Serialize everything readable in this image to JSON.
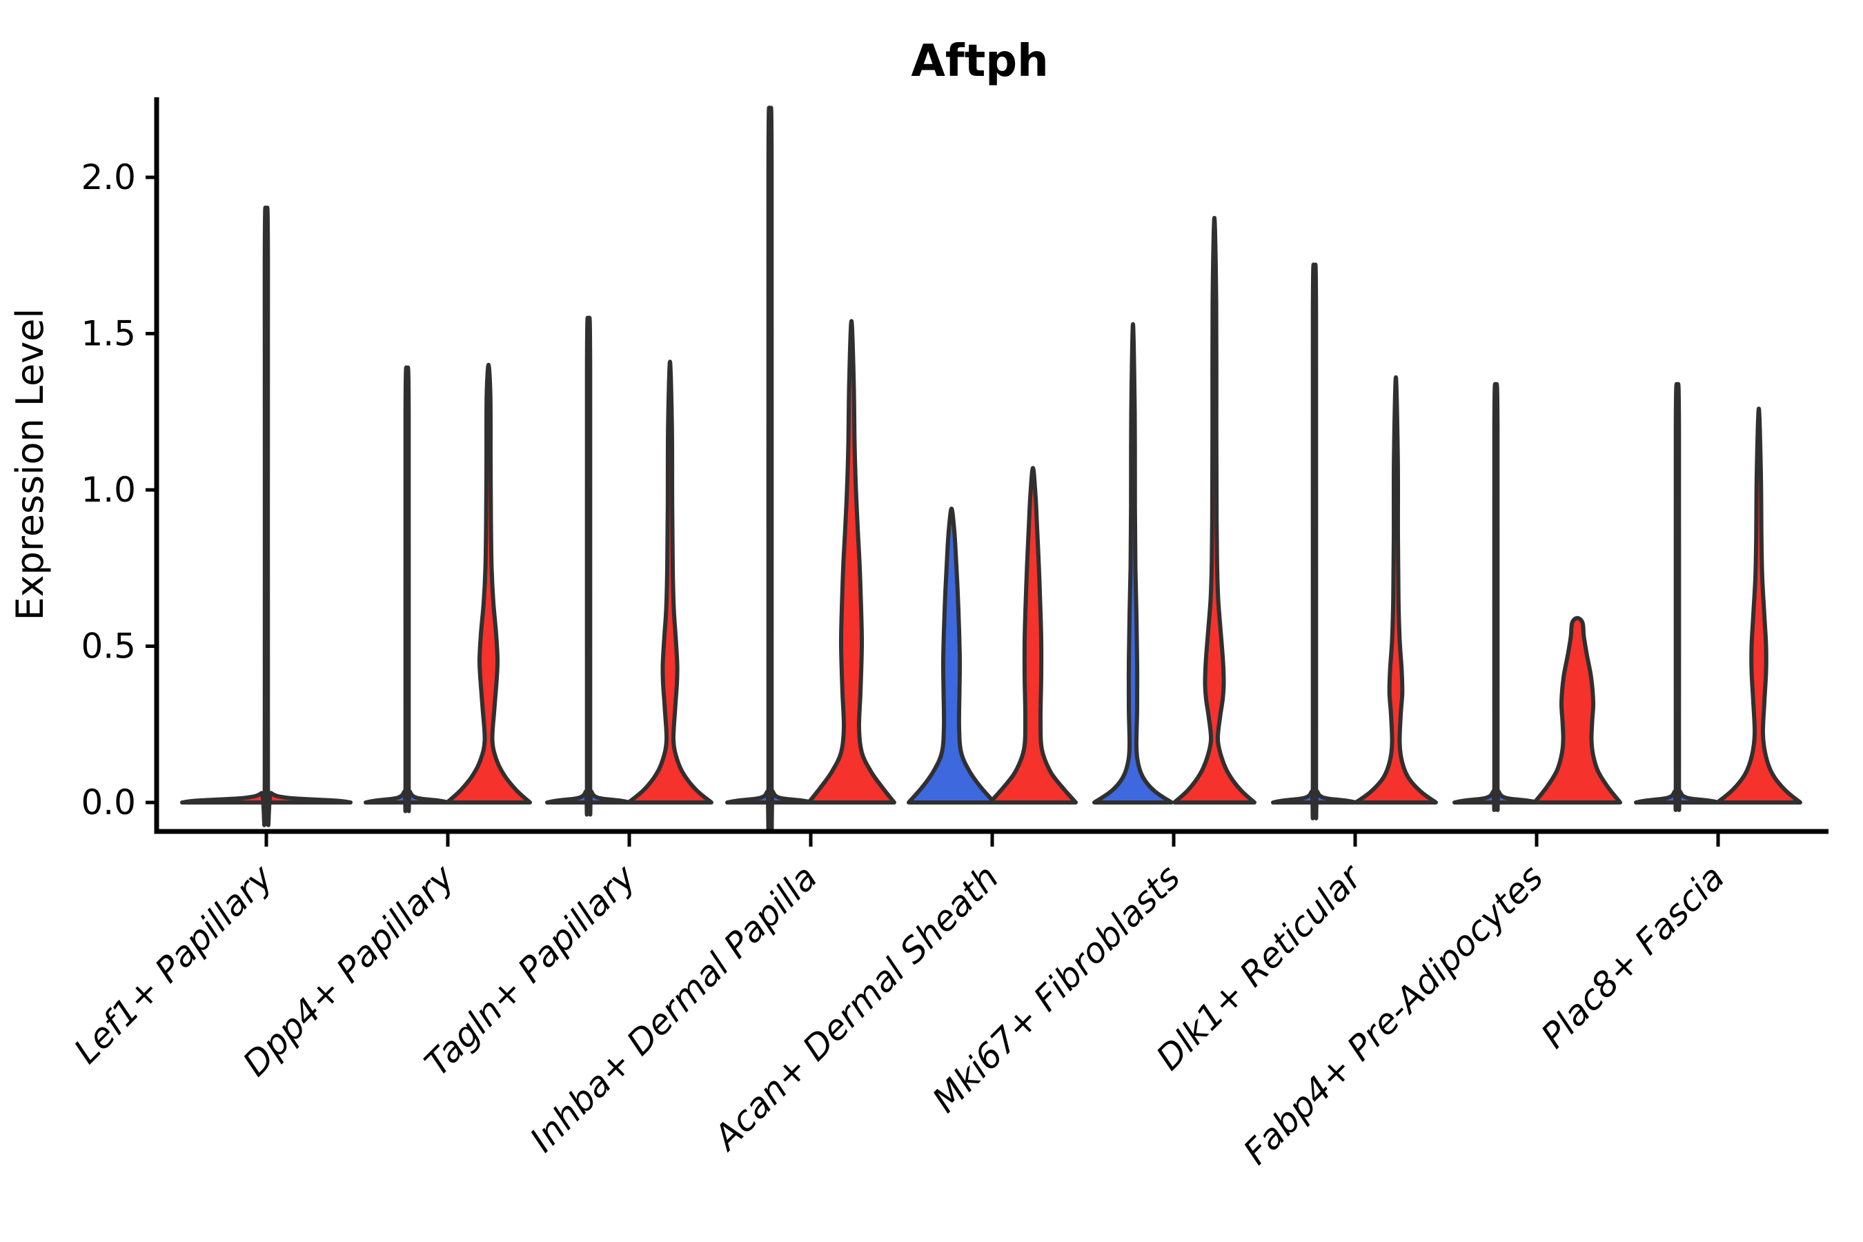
{
  "chart_data": {
    "type": "violin",
    "title": "Aftph",
    "xlabel": "",
    "ylabel": "Expression Level",
    "legend": "none",
    "grid": false,
    "ylim": [
      0,
      2.25
    ],
    "ytick_values": [
      0.0,
      0.5,
      1.0,
      1.5,
      2.0
    ],
    "ytick_labels": [
      "0.0",
      "0.5",
      "1.0",
      "1.5",
      "2.0"
    ],
    "categories": [
      "Lef1+ Papillary",
      "Dpp4+ Papillary",
      "Tagln+ Papillary",
      "Inhba+ Dermal Papilla",
      "Acan+ Dermal Sheath",
      "Mki67+ Fibroblasts",
      "Dlk1+ Reticular",
      "Fabp4+ Pre-Adipocytes",
      "Plac8+ Fascia"
    ],
    "colors": {
      "red": "#F5322B",
      "blue": "#3E68DE",
      "outline": "#303030",
      "axis": "#000000",
      "background": "#FFFFFF"
    },
    "violins": [
      {
        "category_index": 0,
        "side": "single",
        "color": "red",
        "max_expression": 1.85,
        "profile": [
          [
            0,
            122
          ],
          [
            0.006,
            100
          ],
          [
            0.015,
            30
          ],
          [
            0.03,
            7
          ],
          [
            0.06,
            2.3
          ],
          [
            1.73,
            2.3
          ],
          [
            1.85,
            0
          ]
        ]
      },
      {
        "category_index": 1,
        "side": "left",
        "color": "blue",
        "max_expression": 1.37,
        "profile": [
          [
            0,
            60
          ],
          [
            0.006,
            46
          ],
          [
            0.015,
            14
          ],
          [
            0.035,
            4
          ],
          [
            0.07,
            2.3
          ],
          [
            1.25,
            2.3
          ],
          [
            1.37,
            0
          ]
        ]
      },
      {
        "category_index": 1,
        "side": "right",
        "color": "red",
        "max_expression": 1.4,
        "profile": [
          [
            0,
            60
          ],
          [
            0.04,
            40
          ],
          [
            0.09,
            22
          ],
          [
            0.14,
            11
          ],
          [
            0.2,
            5.5
          ],
          [
            0.3,
            8.5
          ],
          [
            0.4,
            12
          ],
          [
            0.46,
            13
          ],
          [
            0.54,
            11
          ],
          [
            0.64,
            7
          ],
          [
            0.75,
            4.5
          ],
          [
            0.9,
            3.5
          ],
          [
            1.1,
            3
          ],
          [
            1.3,
            2.7
          ],
          [
            1.4,
            0
          ]
        ]
      },
      {
        "category_index": 2,
        "side": "left",
        "color": "blue",
        "max_expression": 1.52,
        "profile": [
          [
            0,
            60
          ],
          [
            0.006,
            46
          ],
          [
            0.015,
            14
          ],
          [
            0.035,
            4
          ],
          [
            0.07,
            2.3
          ],
          [
            1.4,
            2.3
          ],
          [
            1.52,
            0
          ]
        ]
      },
      {
        "category_index": 2,
        "side": "right",
        "color": "red",
        "max_expression": 1.41,
        "profile": [
          [
            0,
            60
          ],
          [
            0.04,
            38
          ],
          [
            0.09,
            20
          ],
          [
            0.14,
            10
          ],
          [
            0.2,
            5
          ],
          [
            0.3,
            7.5
          ],
          [
            0.38,
            10
          ],
          [
            0.44,
            10.5
          ],
          [
            0.52,
            8.5
          ],
          [
            0.62,
            5.5
          ],
          [
            0.75,
            4
          ],
          [
            0.95,
            3.2
          ],
          [
            1.2,
            2.8
          ],
          [
            1.41,
            0
          ]
        ]
      },
      {
        "category_index": 3,
        "side": "left",
        "color": "blue",
        "max_expression": 2.15,
        "profile": [
          [
            0,
            62
          ],
          [
            0.006,
            47
          ],
          [
            0.015,
            14
          ],
          [
            0.035,
            4
          ],
          [
            0.07,
            2.3
          ],
          [
            2.03,
            2.3
          ],
          [
            2.15,
            0
          ]
        ]
      },
      {
        "category_index": 3,
        "side": "right",
        "color": "red",
        "max_expression": 1.54,
        "profile": [
          [
            0,
            62
          ],
          [
            0.05,
            44
          ],
          [
            0.1,
            28
          ],
          [
            0.16,
            15
          ],
          [
            0.24,
            11
          ],
          [
            0.35,
            13
          ],
          [
            0.5,
            15
          ],
          [
            0.62,
            14
          ],
          [
            0.75,
            12
          ],
          [
            0.88,
            9
          ],
          [
            1.0,
            6.5
          ],
          [
            1.15,
            4.5
          ],
          [
            1.35,
            3.2
          ],
          [
            1.54,
            0
          ]
        ]
      },
      {
        "category_index": 4,
        "side": "left",
        "color": "blue",
        "max_expression": 0.94,
        "profile": [
          [
            0,
            62
          ],
          [
            0.05,
            42
          ],
          [
            0.1,
            26
          ],
          [
            0.16,
            14
          ],
          [
            0.24,
            11
          ],
          [
            0.35,
            11.5
          ],
          [
            0.45,
            12
          ],
          [
            0.55,
            11
          ],
          [
            0.67,
            9
          ],
          [
            0.78,
            6.5
          ],
          [
            0.87,
            4
          ],
          [
            0.94,
            0
          ]
        ]
      },
      {
        "category_index": 4,
        "side": "right",
        "color": "red",
        "max_expression": 1.07,
        "profile": [
          [
            0,
            62
          ],
          [
            0.05,
            42
          ],
          [
            0.1,
            25
          ],
          [
            0.17,
            13
          ],
          [
            0.26,
            11
          ],
          [
            0.4,
            12
          ],
          [
            0.52,
            12
          ],
          [
            0.64,
            10.5
          ],
          [
            0.76,
            8.5
          ],
          [
            0.88,
            6
          ],
          [
            0.98,
            3.8
          ],
          [
            1.07,
            0
          ]
        ]
      },
      {
        "category_index": 5,
        "side": "left",
        "color": "blue",
        "max_expression": 1.53,
        "profile": [
          [
            0,
            56
          ],
          [
            0.035,
            32
          ],
          [
            0.075,
            16
          ],
          [
            0.12,
            8
          ],
          [
            0.18,
            5
          ],
          [
            0.3,
            6
          ],
          [
            0.45,
            6
          ],
          [
            0.6,
            5
          ],
          [
            0.75,
            3.5
          ],
          [
            0.95,
            2.8
          ],
          [
            1.25,
            2.5
          ],
          [
            1.53,
            0
          ]
        ]
      },
      {
        "category_index": 5,
        "side": "right",
        "color": "red",
        "max_expression": 1.87,
        "profile": [
          [
            0,
            58
          ],
          [
            0.04,
            38
          ],
          [
            0.09,
            21
          ],
          [
            0.14,
            11
          ],
          [
            0.2,
            5
          ],
          [
            0.27,
            8
          ],
          [
            0.33,
            12
          ],
          [
            0.38,
            13.5
          ],
          [
            0.45,
            12.5
          ],
          [
            0.55,
            9
          ],
          [
            0.65,
            5.5
          ],
          [
            0.75,
            4
          ],
          [
            0.9,
            3.2
          ],
          [
            1.2,
            2.8
          ],
          [
            1.6,
            2.6
          ],
          [
            1.87,
            0
          ]
        ]
      },
      {
        "category_index": 6,
        "side": "left",
        "color": "blue",
        "max_expression": 1.68,
        "profile": [
          [
            0,
            60
          ],
          [
            0.006,
            46
          ],
          [
            0.015,
            14
          ],
          [
            0.035,
            4
          ],
          [
            0.07,
            2.3
          ],
          [
            1.56,
            2.3
          ],
          [
            1.68,
            0
          ]
        ]
      },
      {
        "category_index": 6,
        "side": "right",
        "color": "red",
        "max_expression": 1.36,
        "profile": [
          [
            0,
            58
          ],
          [
            0.035,
            36
          ],
          [
            0.08,
            18
          ],
          [
            0.13,
            9
          ],
          [
            0.19,
            5.5
          ],
          [
            0.28,
            7
          ],
          [
            0.35,
            9.3
          ],
          [
            0.42,
            8.5
          ],
          [
            0.52,
            5.5
          ],
          [
            0.65,
            3.8
          ],
          [
            0.85,
            3
          ],
          [
            1.1,
            2.8
          ],
          [
            1.36,
            0
          ]
        ]
      },
      {
        "category_index": 7,
        "side": "left",
        "color": "blue",
        "max_expression": 1.32,
        "profile": [
          [
            0,
            60
          ],
          [
            0.006,
            46
          ],
          [
            0.015,
            14
          ],
          [
            0.035,
            4
          ],
          [
            0.07,
            2.3
          ],
          [
            1.2,
            2.3
          ],
          [
            1.32,
            0
          ]
        ]
      },
      {
        "category_index": 7,
        "side": "right",
        "color": "red",
        "max_expression": 0.59,
        "profile": [
          [
            0,
            62
          ],
          [
            0.05,
            44
          ],
          [
            0.1,
            30
          ],
          [
            0.15,
            23
          ],
          [
            0.2,
            20.5
          ],
          [
            0.26,
            21.5
          ],
          [
            0.32,
            23
          ],
          [
            0.4,
            20
          ],
          [
            0.47,
            14
          ],
          [
            0.53,
            9.5
          ],
          [
            0.575,
            7.5
          ],
          [
            0.59,
            0
          ]
        ]
      },
      {
        "category_index": 8,
        "side": "left",
        "color": "blue",
        "max_expression": 1.32,
        "profile": [
          [
            0,
            60
          ],
          [
            0.006,
            46
          ],
          [
            0.015,
            14
          ],
          [
            0.035,
            4
          ],
          [
            0.07,
            2.3
          ],
          [
            1.2,
            2.3
          ],
          [
            1.32,
            0
          ]
        ]
      },
      {
        "category_index": 8,
        "side": "right",
        "color": "red",
        "max_expression": 1.26,
        "profile": [
          [
            0,
            60
          ],
          [
            0.04,
            38
          ],
          [
            0.09,
            20
          ],
          [
            0.15,
            10
          ],
          [
            0.22,
            6
          ],
          [
            0.32,
            8
          ],
          [
            0.42,
            10.5
          ],
          [
            0.5,
            10.5
          ],
          [
            0.6,
            8
          ],
          [
            0.72,
            5
          ],
          [
            0.85,
            3.8
          ],
          [
            1.05,
            3
          ],
          [
            1.26,
            0
          ]
        ]
      }
    ]
  }
}
